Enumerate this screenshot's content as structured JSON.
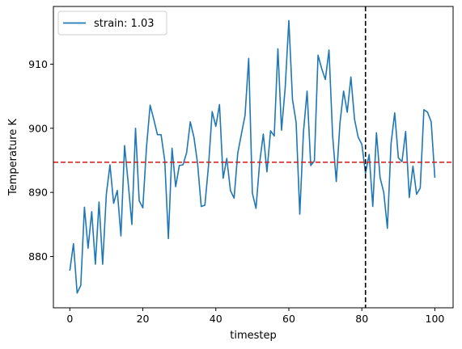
{
  "chart_data": {
    "type": "line",
    "xlabel": "timestep",
    "ylabel": "Temperature K",
    "xlim": [
      -4.5,
      105
    ],
    "ylim": [
      872,
      919
    ],
    "xticks": [
      0,
      20,
      40,
      60,
      80,
      100
    ],
    "yticks": [
      880,
      890,
      900,
      910
    ],
    "legend": {
      "position": "top-left"
    },
    "series": [
      {
        "name": "strain: 1.03",
        "color": "#1f77b4",
        "x": [
          0,
          1,
          2,
          3,
          4,
          5,
          6,
          7,
          8,
          9,
          10,
          11,
          12,
          13,
          14,
          15,
          16,
          17,
          18,
          19,
          20,
          21,
          22,
          23,
          24,
          25,
          26,
          27,
          28,
          29,
          30,
          31,
          32,
          33,
          34,
          35,
          36,
          37,
          38,
          39,
          40,
          41,
          42,
          43,
          44,
          45,
          46,
          47,
          48,
          49,
          50,
          51,
          52,
          53,
          54,
          55,
          56,
          57,
          58,
          59,
          60,
          61,
          62,
          63,
          64,
          65,
          66,
          67,
          68,
          69,
          70,
          71,
          72,
          73,
          74,
          75,
          76,
          77,
          78,
          79,
          80,
          81,
          82,
          83,
          84,
          85,
          86,
          87,
          88,
          89,
          90,
          91,
          92,
          93,
          94,
          95,
          96,
          97,
          98,
          99,
          100
        ],
        "y": [
          877.8,
          882.0,
          874.3,
          875.5,
          887.7,
          881.3,
          887.0,
          878.8,
          888.5,
          878.8,
          889.7,
          894.3,
          888.3,
          890.3,
          883.2,
          897.3,
          891.4,
          885.0,
          900.0,
          888.7,
          887.6,
          897.0,
          903.6,
          901.4,
          899.0,
          899.0,
          895.0,
          882.8,
          896.9,
          890.9,
          894.2,
          894.3,
          896.2,
          901.0,
          898.6,
          894.5,
          887.8,
          888.0,
          894.2,
          902.6,
          900.3,
          903.7,
          892.2,
          895.3,
          890.3,
          889.1,
          896.1,
          899.1,
          902.0,
          910.9,
          889.9,
          887.5,
          894.6,
          899.1,
          893.2,
          899.6,
          898.8,
          912.4,
          899.7,
          906.3,
          916.8,
          904.5,
          900.9,
          886.6,
          899.4,
          905.8,
          894.2,
          894.9,
          911.4,
          909.3,
          907.6,
          912.2,
          898.8,
          891.7,
          900.8,
          905.8,
          902.5,
          908.0,
          901.4,
          898.6,
          897.5,
          893.0,
          895.9,
          887.8,
          899.3,
          892.3,
          890.0,
          884.4,
          897.6,
          902.4,
          895.4,
          894.8,
          899.5,
          889.2,
          894.1,
          889.7,
          890.7,
          902.9,
          902.5,
          901.0,
          892.3
        ]
      }
    ],
    "hlines": [
      {
        "y": 894.7,
        "color": "#d62728",
        "style": "dashed"
      }
    ],
    "vlines": [
      {
        "x": 81,
        "color": "#000000",
        "style": "dashed"
      }
    ]
  }
}
